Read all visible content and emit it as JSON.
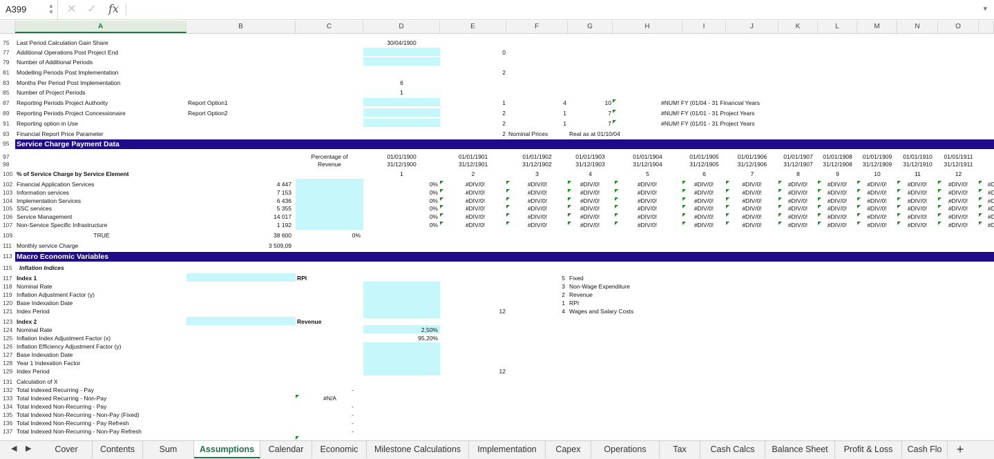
{
  "formula_bar": {
    "name_box": "A399",
    "cancel_icon": "✕",
    "enter_icon": "✓",
    "fx_label": "fx",
    "expand_icon": "▾"
  },
  "columns": [
    "A",
    "B",
    "C",
    "D",
    "E",
    "F",
    "G",
    "H",
    "I",
    "J",
    "K",
    "L",
    "M",
    "N",
    "O"
  ],
  "selected_column": "A",
  "top_rows": [
    {
      "rn": "75",
      "label": "Last Period Calculation Gain Share",
      "d": "30/04/1900"
    },
    {
      "rn": "77",
      "label": "Additional Operations Post Project End",
      "e": "0"
    },
    {
      "rn": "79",
      "label": "Number of Additional Periods"
    },
    {
      "rn": "81",
      "label": "Modelling Periods Post Implementation",
      "e": "2"
    },
    {
      "rn": "83",
      "label": "Months Per Period Post Implementation",
      "d": "6"
    },
    {
      "rn": "85",
      "label": "Number of Project Periods",
      "d": "1"
    },
    {
      "rn": "87",
      "label": "Reporting Periods Project Authority",
      "b": "Report Option1",
      "e": "1",
      "f": "4",
      "g": "10",
      "i": "#NUM!  FY  (01/04 -  31 Financial Years"
    },
    {
      "rn": "89",
      "label": "Reporting Periods Project Concessionaire",
      "b": "Report Option2",
      "e": "2",
      "f": "1",
      "g": "7",
      "i": "#NUM!  FY  (01/01 -  31 Project Years"
    },
    {
      "rn": "91",
      "label": "Reporting option in Use",
      "e": "2",
      "f": "1",
      "g": "7",
      "i": "#NUM!  FY  (01/01 -  31 Project Years"
    },
    {
      "rn": "93",
      "label": "Financial Report Price Parameter",
      "e": "2",
      "e_text": "Nominal Prices",
      "f_text": "Real as at 01/10/04"
    }
  ],
  "service_section": {
    "band_rn": "95",
    "title": "Service Charge Payment Data",
    "rn97": "97",
    "rn98": "98",
    "pct_header_1": "Percentage of",
    "pct_header_2": "Revenue",
    "periods": [
      {
        "start": "01/01/1900",
        "end": "31/12/1900",
        "n": "1"
      },
      {
        "start": "01/01/1901",
        "end": "31/12/1901",
        "n": "2"
      },
      {
        "start": "01/01/1902",
        "end": "31/12/1902",
        "n": "3"
      },
      {
        "start": "01/01/1903",
        "end": "31/12/1903",
        "n": "4"
      },
      {
        "start": "01/01/1904",
        "end": "31/12/1904",
        "n": "5"
      },
      {
        "start": "01/01/1905",
        "end": "31/12/1905",
        "n": "6"
      },
      {
        "start": "01/01/1906",
        "end": "31/12/1906",
        "n": "7"
      },
      {
        "start": "01/01/1907",
        "end": "31/12/1907",
        "n": "8"
      },
      {
        "start": "01/01/1908",
        "end": "31/12/1908",
        "n": "9"
      },
      {
        "start": "01/01/1909",
        "end": "31/12/1909",
        "n": "10"
      },
      {
        "start": "01/01/1910",
        "end": "31/12/1910",
        "n": "11"
      },
      {
        "start": "01/01/1911",
        "end": "31/12/1911",
        "n": "12"
      }
    ],
    "rn100": "100",
    "by_element_label": "% of Service Charge by Service Element",
    "elements": [
      {
        "rn": "102",
        "label": "Financial Application Services",
        "value": "4 447",
        "pct": "0%"
      },
      {
        "rn": "103",
        "label": "Information services",
        "value": "7 153",
        "pct": "0%"
      },
      {
        "rn": "104",
        "label": "Implementation Services",
        "value": "6 436",
        "pct": "0%"
      },
      {
        "rn": "105",
        "label": "SSC services",
        "value": "5 355",
        "pct": "0%"
      },
      {
        "rn": "106",
        "label": "Service Management",
        "value": "14 017",
        "pct": "0%"
      },
      {
        "rn": "107",
        "label": "Non-Service Specific Infrastructure",
        "value": "1 192",
        "pct": "0%"
      }
    ],
    "error_value": "#DIV/0!",
    "overflow_error": "#D",
    "rn109": "109",
    "true_label": "TRUE",
    "total_value": "38 600",
    "total_pct": "0%",
    "rn111": "111",
    "monthly_label": "Monthly service Charge",
    "monthly_value": "3 509,09"
  },
  "macro_section": {
    "band_rn": "113",
    "title": "Macro Economic Variables",
    "rn115": "115",
    "inflation_label": "Inflation Indices",
    "index1": [
      {
        "rn": "117",
        "label": "Index 1",
        "bold": true,
        "c": "RPI"
      },
      {
        "rn": "118",
        "label": "Nominal Rate"
      },
      {
        "rn": "119",
        "label": "Inflation Adjustment Factor (y)"
      },
      {
        "rn": "120",
        "label": "Base Indexation Date"
      },
      {
        "rn": "121",
        "label": "Index Period",
        "e": "12"
      }
    ],
    "index2": [
      {
        "rn": "123",
        "label": "Index 2",
        "bold": true,
        "c": "Revenue"
      },
      {
        "rn": "124",
        "label": "Nominal Rate",
        "d": "2,50%"
      },
      {
        "rn": "125",
        "label": "Inflation Index Adjustment Factor (x)",
        "d": "95,20%"
      },
      {
        "rn": "126",
        "label": "Inflation Efficiency Adjustment Factor (y)"
      },
      {
        "rn": "127",
        "label": "Base Indexation Date"
      },
      {
        "rn": "128",
        "label": "Year 1 Indexation Factor"
      },
      {
        "rn": "129",
        "label": "Index Period",
        "e": "12"
      }
    ],
    "legend": [
      {
        "n": "5",
        "text": "Fixed"
      },
      {
        "n": "3",
        "text": "Non-Wage Expenditure"
      },
      {
        "n": "2",
        "text": "Revenue"
      },
      {
        "n": "1",
        "text": "RPI"
      },
      {
        "n": "4",
        "text": "Wages and Salary Costs"
      }
    ],
    "calc_rows": [
      {
        "rn": "131",
        "label": "Calculation of X"
      },
      {
        "rn": "132",
        "label": "Total Indexed Recurring - Pay",
        "dash": "-"
      },
      {
        "rn": "133",
        "label": "Total Indexed Recurring - Non-Pay",
        "c": "#N/A"
      },
      {
        "rn": "134",
        "label": "Total Indexed Non-Recurring - Pay",
        "dash": "-"
      },
      {
        "rn": "135",
        "label": "Total Indexed Non-Recurring - Non-Pay (Fixed)",
        "dash": "-"
      },
      {
        "rn": "136",
        "label": "Total Indexed Non-Recurring - Pay Refresh",
        "dash": "-"
      },
      {
        "rn": "137",
        "label": "Total Indexed Non-Recurring - Non-Pay Refresh",
        "dash": "-"
      }
    ]
  },
  "tabs": [
    "Cover",
    "Contents",
    "Sum",
    "Assumptions",
    "Calendar",
    "Economic",
    "Milestone Calculations",
    "Implementation",
    "Capex",
    "Operations",
    "Tax",
    "Cash Calcs",
    "Balance Sheet",
    "Profit & Loss",
    "Cash Flo"
  ],
  "active_tab": "Assumptions",
  "add_tab_icon": "+",
  "nav_prev_icon": "◀",
  "nav_next_icon": "▶"
}
